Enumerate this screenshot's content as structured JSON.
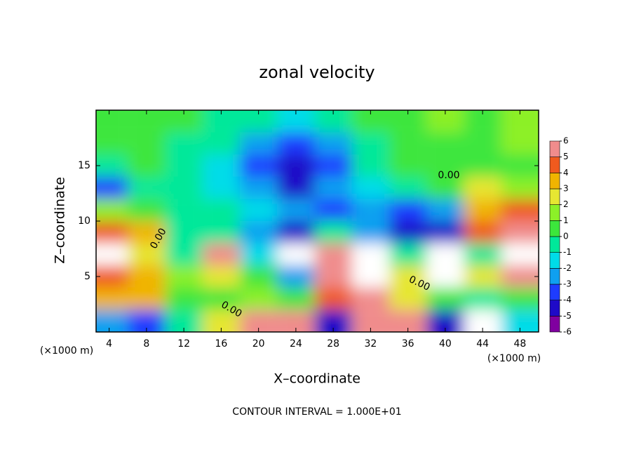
{
  "chart_data": {
    "type": "heatmap",
    "title": "zonal velocity",
    "x_label": "X–coordinate",
    "y_label": "Z–coordinate",
    "x_unit": "(×1000 m)",
    "x_unit_right": "(×1000 m)",
    "footer": "CONTOUR INTERVAL = 1.000E+01",
    "x": [
      4,
      8,
      12,
      16,
      20,
      24,
      28,
      32,
      36,
      40,
      44,
      48
    ],
    "y": [
      19,
      17,
      15,
      13,
      11,
      9,
      7,
      5,
      3,
      1
    ],
    "values": [
      [
        0.5,
        0,
        0,
        -0.5,
        -1,
        -1.5,
        -1,
        0,
        0.5,
        1,
        0.5,
        1
      ],
      [
        0,
        0,
        -0.5,
        -1,
        -2.5,
        -3.5,
        -3,
        -1,
        0,
        0.5,
        0.5,
        1
      ],
      [
        -1,
        0,
        -1,
        -2,
        -3.5,
        -4.5,
        -3.5,
        -1,
        0,
        0,
        0,
        0.5
      ],
      [
        -4,
        -1,
        -1,
        -2,
        -3,
        -4.5,
        -3,
        -2,
        -0.5,
        0.5,
        2,
        1.5
      ],
      [
        1,
        0,
        -1,
        -1,
        -2,
        -3,
        -4,
        -3,
        -4,
        -3,
        3,
        4
      ],
      [
        4.5,
        3,
        -1,
        -1,
        -3,
        -5,
        -1,
        -3,
        -5,
        -5,
        4,
        5
      ],
      [
        6.5,
        2,
        -1,
        5,
        -2,
        -7,
        5,
        7,
        -1,
        -7,
        -1,
        7
      ],
      [
        4,
        3,
        1,
        2,
        0,
        -3,
        5,
        7,
        2,
        -7,
        2,
        5
      ],
      [
        3,
        3,
        0.5,
        0.5,
        1,
        0,
        4,
        5,
        2,
        0,
        -1,
        0
      ],
      [
        -3,
        -4,
        -1,
        2,
        5,
        6,
        -5,
        5,
        6,
        -5,
        7,
        -2
      ]
    ],
    "xlim": [
      2.6,
      50
    ],
    "ylim": [
      0,
      20
    ],
    "xticks": [
      4,
      8,
      12,
      16,
      20,
      24,
      28,
      32,
      36,
      40,
      44,
      48
    ],
    "yticks": [
      5,
      10,
      15
    ],
    "colorbar_ticks": [
      -6,
      -5,
      -4,
      -3,
      -2,
      -1,
      0,
      1,
      2,
      3,
      4,
      5,
      6
    ],
    "colorscale": [
      "#8000a0",
      "#1e0ac8",
      "#1e3cff",
      "#0fa0f0",
      "#00dce8",
      "#00e89a",
      "#3ce63c",
      "#8cf028",
      "#e6e632",
      "#f0b400",
      "#f05a1e",
      "#f08c8c"
    ],
    "contour_labels": [
      "0.00",
      "0.00",
      "0.00",
      "0.00"
    ]
  }
}
